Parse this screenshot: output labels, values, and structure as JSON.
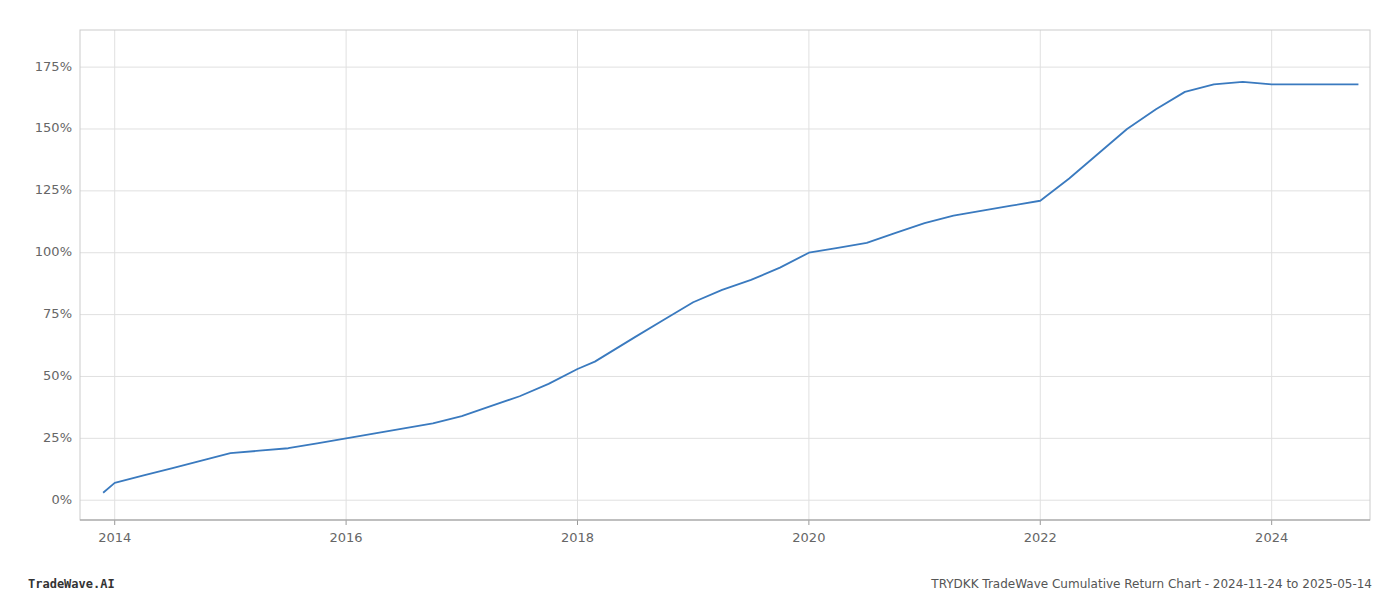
{
  "chart_data": {
    "type": "line",
    "title": "TRYDKK TradeWave Cumulative Return Chart - 2024-11-24 to 2025-05-14",
    "annotations": [
      "TradeWave.AI"
    ],
    "color": "#3a7abf",
    "x": [
      2013.9,
      2014.0,
      2014.25,
      2014.5,
      2014.75,
      2015.0,
      2015.25,
      2015.5,
      2015.75,
      2016.0,
      2016.25,
      2016.5,
      2016.75,
      2017.0,
      2017.25,
      2017.5,
      2017.75,
      2018.0,
      2018.15,
      2018.5,
      2018.75,
      2019.0,
      2019.25,
      2019.5,
      2019.75,
      2020.0,
      2020.25,
      2020.5,
      2020.75,
      2021.0,
      2021.25,
      2021.5,
      2021.75,
      2022.0,
      2022.25,
      2022.5,
      2022.75,
      2023.0,
      2023.25,
      2023.5,
      2023.75,
      2024.0,
      2024.25,
      2024.5,
      2024.75
    ],
    "values": [
      3,
      7,
      10,
      13,
      16,
      19,
      20,
      21,
      23,
      25,
      27,
      29,
      31,
      34,
      38,
      42,
      47,
      53,
      56,
      66,
      73,
      80,
      85,
      89,
      94,
      100,
      102,
      104,
      108,
      112,
      115,
      117,
      119,
      121,
      130,
      140,
      150,
      158,
      165,
      168,
      169,
      168,
      168,
      168,
      168
    ],
    "xlim": [
      2013.7,
      2024.85
    ],
    "ylim": [
      -8,
      190
    ],
    "xticks": [
      2014,
      2016,
      2018,
      2020,
      2022,
      2024
    ],
    "yticks": [
      {
        "value": 0,
        "label": "0%"
      },
      {
        "value": 25,
        "label": "25%"
      },
      {
        "value": 50,
        "label": "50%"
      },
      {
        "value": 75,
        "label": "75%"
      },
      {
        "value": 100,
        "label": "100%"
      },
      {
        "value": 125,
        "label": "125%"
      },
      {
        "value": 150,
        "label": "150%"
      },
      {
        "value": 175,
        "label": "175%"
      }
    ],
    "grid": true
  }
}
